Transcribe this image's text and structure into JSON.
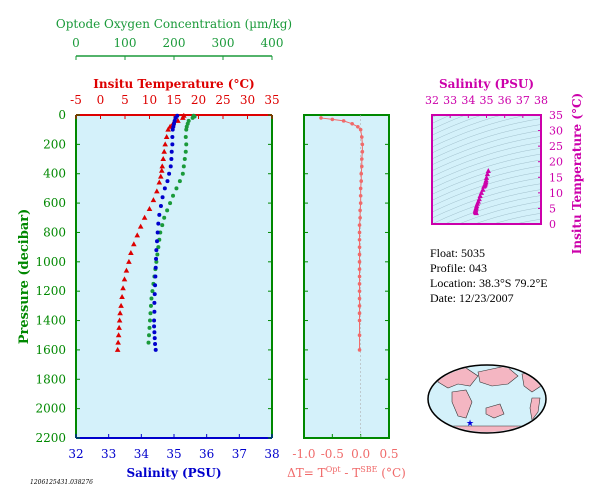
{
  "footer_id": "1206125431.038276",
  "float_info": {
    "float": "Float:  5035",
    "profile": "Profile:  043",
    "location": "Location:  38.3°S  79.2°E",
    "date": "Date:  12/23/2007"
  },
  "colors": {
    "oxygen": "#1a9a3a",
    "temperature": "#dd0000",
    "salinity": "#0000cc",
    "delta_t": "#f06a6a",
    "ts_diagram": "#cc00aa",
    "plot_bg": "#d4f1fa",
    "frame_green": "#008800"
  },
  "chart_data": [
    {
      "type": "scatter",
      "name": "main-profile",
      "ylabel": "Pressure (decibar)",
      "y_ticks": [
        0,
        200,
        400,
        600,
        800,
        1000,
        1200,
        1400,
        1600,
        1800,
        2000,
        2200
      ],
      "ylim": [
        2200,
        0
      ],
      "axes": {
        "oxygen": {
          "label": "Optode Oxygen Concentration (µm/kg)",
          "lim": [
            0,
            400
          ],
          "ticks": [
            0,
            100,
            200,
            300,
            400
          ]
        },
        "temperature": {
          "label": "Insitu Temperature (°C)",
          "lim": [
            -5,
            35
          ],
          "ticks": [
            -5,
            0,
            5,
            10,
            15,
            20,
            25,
            30,
            35
          ]
        },
        "salinity": {
          "label": "Salinity (PSU)",
          "lim": [
            32,
            38
          ],
          "ticks": [
            32,
            33,
            34,
            35,
            36,
            37,
            38
          ]
        }
      },
      "series": [
        {
          "axis": "oxygen",
          "marker": "circle",
          "x": [
            240,
            242,
            238,
            230,
            228,
            226,
            225,
            224,
            225,
            224,
            222,
            220,
            218,
            212,
            205,
            198,
            192,
            186,
            180,
            176,
            172,
            170,
            168,
            166,
            164,
            162,
            160,
            158,
            156,
            154,
            153,
            152,
            151,
            150,
            149,
            148
          ],
          "y": [
            5,
            10,
            20,
            40,
            60,
            80,
            100,
            150,
            200,
            250,
            300,
            350,
            400,
            450,
            500,
            550,
            600,
            650,
            700,
            750,
            800,
            850,
            900,
            950,
            1000,
            1050,
            1100,
            1150,
            1200,
            1250,
            1300,
            1350,
            1400,
            1450,
            1500,
            1550
          ]
        },
        {
          "axis": "temperature",
          "marker": "triangle",
          "x": [
            17.0,
            16.8,
            15.8,
            14.8,
            14.2,
            13.8,
            13.5,
            13.2,
            13.0,
            12.8,
            12.6,
            12.5,
            12.3,
            12.0,
            11.5,
            10.8,
            10.0,
            9.0,
            8.2,
            7.5,
            6.8,
            6.2,
            5.8,
            5.3,
            4.9,
            4.6,
            4.4,
            4.2,
            4.0,
            3.9,
            3.8,
            3.7,
            3.6,
            3.5
          ],
          "y": [
            5,
            20,
            40,
            60,
            80,
            100,
            150,
            200,
            250,
            300,
            350,
            380,
            420,
            460,
            520,
            580,
            640,
            700,
            760,
            820,
            880,
            940,
            1000,
            1060,
            1120,
            1180,
            1240,
            1300,
            1350,
            1400,
            1450,
            1500,
            1550,
            1600
          ]
        },
        {
          "axis": "salinity",
          "marker": "circle",
          "x": [
            35.1,
            35.05,
            35.02,
            35.0,
            34.98,
            34.96,
            34.95,
            34.95,
            34.93,
            34.92,
            34.9,
            34.85,
            34.8,
            34.72,
            34.65,
            34.6,
            34.55,
            34.52,
            34.5,
            34.48,
            34.46,
            34.45,
            34.44,
            34.43,
            34.42,
            34.41,
            34.4,
            34.4,
            34.39,
            34.39,
            34.4,
            34.41,
            34.42,
            34.44
          ],
          "y": [
            5,
            20,
            40,
            60,
            80,
            100,
            150,
            200,
            250,
            300,
            350,
            400,
            450,
            500,
            560,
            620,
            680,
            740,
            800,
            860,
            920,
            980,
            1040,
            1100,
            1160,
            1220,
            1280,
            1340,
            1400,
            1440,
            1480,
            1520,
            1560,
            1600
          ]
        }
      ]
    },
    {
      "type": "scatter",
      "name": "delta-t",
      "xlabel": "ΔT= T^Opt - T^SBE (°C)",
      "xlim": [
        -1.0,
        0.5
      ],
      "x_ticks": [
        -1.0,
        -0.5,
        0.0,
        0.5
      ],
      "x_tick_labels": [
        "-1.0",
        "-0.5",
        "0.0",
        "0.5"
      ],
      "ylim": [
        2200,
        0
      ],
      "x": [
        -0.7,
        -0.5,
        -0.3,
        -0.15,
        -0.05,
        0.0,
        0.02,
        0.03,
        0.03,
        0.02,
        0.02,
        0.01,
        0.01,
        0.0,
        0.0,
        0.0,
        -0.01,
        -0.01,
        -0.02,
        -0.02,
        -0.02,
        -0.02,
        -0.02,
        -0.02,
        -0.02,
        -0.02,
        -0.02,
        -0.02,
        -0.02,
        -0.02,
        -0.02,
        -0.02,
        -0.02,
        -0.02
      ],
      "y": [
        20,
        30,
        40,
        60,
        80,
        100,
        150,
        200,
        250,
        300,
        350,
        400,
        450,
        500,
        550,
        600,
        650,
        700,
        750,
        800,
        850,
        900,
        950,
        1000,
        1050,
        1100,
        1150,
        1200,
        1250,
        1300,
        1350,
        1400,
        1500,
        1600
      ]
    },
    {
      "type": "scatter",
      "name": "ts-diagram",
      "xlabel": "Salinity (PSU)",
      "ylabel": "Insitu Temperature (°C)",
      "xlim": [
        32,
        38
      ],
      "ylim": [
        0,
        35
      ],
      "x_ticks": [
        32,
        33,
        34,
        35,
        36,
        37,
        38
      ],
      "y_ticks": [
        0,
        5,
        10,
        15,
        20,
        25,
        30,
        35
      ],
      "x": [
        35.1,
        35.05,
        35.0,
        34.98,
        34.96,
        34.95,
        34.92,
        34.9,
        34.85,
        34.8,
        34.72,
        34.65,
        34.6,
        34.55,
        34.5,
        34.46,
        34.44,
        34.42,
        34.4,
        34.39,
        34.39,
        34.4,
        34.42,
        34.44
      ],
      "y": [
        17.0,
        16.0,
        14.8,
        14.0,
        13.5,
        13.0,
        12.6,
        12.3,
        12.0,
        11.0,
        10.0,
        9.0,
        8.0,
        7.2,
        6.5,
        5.8,
        5.3,
        4.9,
        4.5,
        4.2,
        4.0,
        3.8,
        3.6,
        3.5
      ]
    }
  ]
}
